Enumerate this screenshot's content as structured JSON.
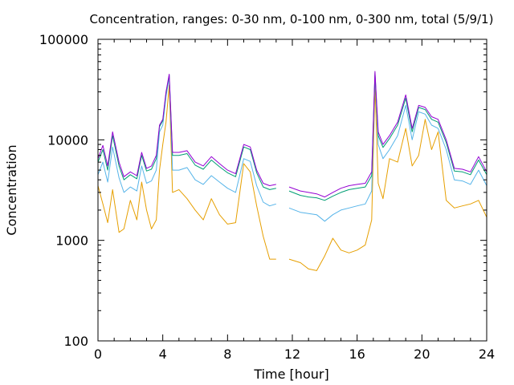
{
  "chart_data": {
    "type": "line",
    "title": "Concentration, ranges: 0-30 nm, 0-100 nm, 0-300 nm, total (5/9/1)",
    "xlabel": "Time [hour]",
    "ylabel": "Concentration",
    "xlim": [
      0,
      24
    ],
    "ylim": [
      100,
      100000
    ],
    "yscale": "log",
    "grid": false,
    "legend": "none",
    "x_ticks": [
      0,
      4,
      8,
      12,
      16,
      20,
      24
    ],
    "x_tick_labels": [
      "0",
      "4",
      "8",
      "12",
      "16",
      "20",
      "24"
    ],
    "y_ticks": [
      100,
      1000,
      10000,
      100000
    ],
    "y_tick_labels": [
      "100",
      "1000",
      "10000",
      "100000"
    ],
    "x": [
      0,
      0.3,
      0.6,
      0.9,
      1.3,
      1.6,
      2.0,
      2.4,
      2.7,
      3.0,
      3.3,
      3.6,
      3.8,
      4.0,
      4.2,
      4.4,
      4.6,
      5.0,
      5.5,
      6.0,
      6.5,
      7.0,
      7.5,
      8.0,
      8.5,
      9.0,
      9.4,
      9.8,
      10.2,
      10.6,
      11.0,
      11.3,
      11.8,
      12.5,
      13.0,
      13.5,
      14.0,
      14.5,
      15.0,
      15.5,
      16.0,
      16.5,
      16.9,
      17.1,
      17.3,
      17.6,
      18.0,
      18.5,
      19.0,
      19.4,
      19.8,
      20.2,
      20.6,
      21.0,
      21.5,
      22.0,
      22.5,
      23.0,
      23.5,
      24.0
    ],
    "series": [
      {
        "color": "#9400d3",
        "values": [
          6500,
          8800,
          5500,
          12000,
          6000,
          4300,
          4800,
          4400,
          7500,
          5200,
          5500,
          7000,
          14000,
          16000,
          30000,
          45000,
          7500,
          7500,
          7800,
          6000,
          5500,
          6800,
          5800,
          5000,
          4600,
          9000,
          8500,
          5000,
          3700,
          3500,
          3600,
          null,
          3400,
          3100,
          3000,
          2900,
          2700,
          3000,
          3300,
          3500,
          3600,
          3700,
          4800,
          48000,
          12000,
          9000,
          11000,
          15000,
          28000,
          13000,
          22000,
          21000,
          17000,
          16000,
          10000,
          5200,
          5100,
          4800,
          6800,
          4800
        ]
      },
      {
        "color": "#009e73",
        "values": [
          6000,
          8000,
          5000,
          11000,
          5500,
          4000,
          4500,
          4100,
          7000,
          4900,
          5100,
          6500,
          13500,
          15500,
          29000,
          44000,
          7000,
          7000,
          7300,
          5600,
          5100,
          6300,
          5400,
          4700,
          4300,
          8500,
          8000,
          4700,
          3400,
          3200,
          3300,
          null,
          3100,
          2800,
          2700,
          2650,
          2500,
          2750,
          3000,
          3200,
          3300,
          3400,
          4400,
          46000,
          11000,
          8400,
          10300,
          14000,
          26000,
          12000,
          21000,
          20000,
          16000,
          15000,
          9400,
          4900,
          4800,
          4500,
          6300,
          4500
        ]
      },
      {
        "color": "#56b4e9",
        "values": [
          4500,
          6000,
          3800,
          8500,
          4200,
          3000,
          3400,
          3100,
          5500,
          3700,
          3900,
          5000,
          12000,
          14000,
          27000,
          42000,
          5000,
          5000,
          5300,
          4000,
          3600,
          4400,
          3800,
          3300,
          3000,
          6500,
          6100,
          3500,
          2400,
          2200,
          2300,
          null,
          2100,
          1900,
          1850,
          1800,
          1550,
          1800,
          2000,
          2100,
          2200,
          2300,
          3100,
          44000,
          9000,
          6500,
          8000,
          11000,
          22000,
          10000,
          19000,
          18000,
          14000,
          13000,
          8000,
          4000,
          3900,
          3600,
          5000,
          3500
        ]
      },
      {
        "color": "#e69f00",
        "values": [
          3500,
          2300,
          1500,
          3200,
          1200,
          1300,
          2500,
          1600,
          3800,
          2000,
          1300,
          1600,
          5000,
          9000,
          15000,
          35000,
          3000,
          3200,
          2600,
          2000,
          1600,
          2600,
          1800,
          1450,
          1500,
          5800,
          4800,
          2200,
          1100,
          650,
          650,
          null,
          650,
          600,
          520,
          500,
          700,
          1050,
          800,
          750,
          800,
          900,
          1600,
          35000,
          3700,
          2600,
          6500,
          6000,
          13000,
          5500,
          7000,
          16000,
          8000,
          12000,
          2500,
          2100,
          2200,
          2300,
          2500,
          1700
        ]
      }
    ]
  }
}
